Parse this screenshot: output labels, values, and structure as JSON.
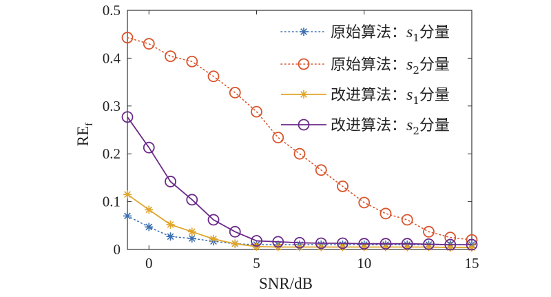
{
  "chart_data": {
    "type": "line",
    "xlabel": "SNR/dB",
    "ylabel": {
      "main": "RE",
      "sub": "f"
    },
    "xlim": [
      -1,
      15
    ],
    "ylim": [
      0,
      0.5
    ],
    "xticks": [
      0,
      5,
      10,
      15
    ],
    "xtick_labels": [
      "0",
      "5",
      "10",
      "15"
    ],
    "yticks": [
      0,
      0.1,
      0.2,
      0.3,
      0.4,
      0.5
    ],
    "ytick_labels": [
      "0",
      "0.1",
      "0.2",
      "0.3",
      "0.4",
      "0.5"
    ],
    "grid": false,
    "legend_position": "top-right",
    "x": [
      -1,
      0,
      1,
      2,
      3,
      4,
      5,
      6,
      7,
      8,
      9,
      10,
      11,
      12,
      13,
      14,
      15
    ],
    "series": [
      {
        "name": {
          "prefix": "原始算法：",
          "var": "s",
          "sub": "1",
          "suffix": "分量"
        },
        "color": "#3a6fb0",
        "line_style": "dotted",
        "marker": "asterisk",
        "values": [
          0.07,
          0.047,
          0.027,
          0.023,
          0.017,
          0.012,
          0.01,
          0.01,
          0.01,
          0.01,
          0.01,
          0.01,
          0.01,
          0.01,
          0.01,
          0.01,
          0.01
        ]
      },
      {
        "name": {
          "prefix": "原始算法：",
          "var": "s",
          "sub": "2",
          "suffix": "分量"
        },
        "color": "#d9542b",
        "line_style": "dotted",
        "marker": "circle",
        "values": [
          0.443,
          0.43,
          0.404,
          0.393,
          0.362,
          0.328,
          0.288,
          0.234,
          0.2,
          0.166,
          0.132,
          0.098,
          0.075,
          0.062,
          0.037,
          0.025,
          0.02
        ]
      },
      {
        "name": {
          "prefix": "改进算法：",
          "var": "s",
          "sub": "1",
          "suffix": "分量"
        },
        "color": "#e0a52a",
        "line_style": "solid",
        "marker": "asterisk",
        "values": [
          0.115,
          0.083,
          0.052,
          0.037,
          0.022,
          0.012,
          0.006,
          0.005,
          0.005,
          0.005,
          0.005,
          0.005,
          0.005,
          0.005,
          0.005,
          0.004,
          0.004
        ]
      },
      {
        "name": {
          "prefix": "改进算法：",
          "var": "s",
          "sub": "2",
          "suffix": "分量"
        },
        "color": "#6a2a8a",
        "line_style": "solid",
        "marker": "circle",
        "values": [
          0.277,
          0.213,
          0.142,
          0.104,
          0.062,
          0.037,
          0.018,
          0.016,
          0.014,
          0.013,
          0.013,
          0.012,
          0.012,
          0.012,
          0.011,
          0.01,
          0.01
        ]
      }
    ]
  }
}
